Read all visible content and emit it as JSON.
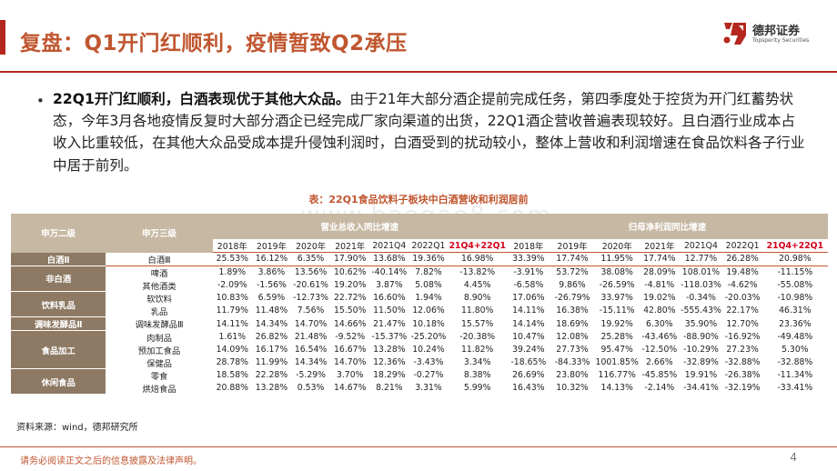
{
  "header": {
    "title": "复盘：Q1开门红顺利，疫情暂致Q2承压",
    "logo_cn": "德邦证券",
    "logo_en": "Topsperity Securities",
    "accent_color": "#B5271E"
  },
  "body": {
    "lead": "22Q1开门红顺利，白酒表现优于其他大众品。",
    "text": "由于21年大部分酒企提前完成任务，第四季度处于控货为开门红蓄势状态，今年3月各地疫情反复时大部分酒企已经完成厂家向渠道的出货，22Q1酒企营收普遍表现较好。且白酒行业成本占收入比重较低，在其他大众品受成本提升侵蚀利润时，白酒受到的扰动较小，整体上营收和利润增速在食品饮料各子行业中居于前列。"
  },
  "table": {
    "title": "表：22Q1食品饮料子板块中白酒营收和利润居前",
    "watermark": "www.baogao8.com",
    "col1_header": "申万二级",
    "col2_header": "申万三级",
    "rev_header": "营业总收入同比增速",
    "profit_header": "归母净利润同比增速",
    "years": [
      "2018年",
      "2019年",
      "2020年",
      "2021年",
      "2021Q4",
      "2022Q1",
      "21Q4+22Q1"
    ],
    "groups": [
      {
        "name": "白酒Ⅱ",
        "rows": [
          {
            "sub": "白酒Ⅲ",
            "rev": [
              "25.53%",
              "16.12%",
              "6.35%",
              "17.90%",
              "13.68%",
              "19.36%",
              "16.98%"
            ],
            "profit": [
              "33.39%",
              "17.74%",
              "11.95%",
              "17.74%",
              "12.77%",
              "26.28%",
              "20.98%"
            ]
          }
        ]
      },
      {
        "name": "非白酒",
        "rows": [
          {
            "sub": "啤酒",
            "rev": [
              "1.89%",
              "3.86%",
              "13.56%",
              "10.62%",
              "-40.14%",
              "7.82%",
              "-13.82%"
            ],
            "profit": [
              "-3.91%",
              "53.72%",
              "38.08%",
              "28.09%",
              "108.01%",
              "19.48%",
              "-11.15%"
            ]
          },
          {
            "sub": "其他酒类",
            "rev": [
              "-2.09%",
              "-1.56%",
              "-20.61%",
              "19.20%",
              "3.87%",
              "5.08%",
              "4.45%"
            ],
            "profit": [
              "-6.58%",
              "9.86%",
              "-26.59%",
              "-4.81%",
              "-118.03%",
              "-4.62%",
              "-55.08%"
            ]
          }
        ]
      },
      {
        "name": "饮料乳品",
        "rows": [
          {
            "sub": "软饮料",
            "rev": [
              "10.83%",
              "6.59%",
              "-12.73%",
              "22.72%",
              "16.60%",
              "1.94%",
              "8.90%"
            ],
            "profit": [
              "17.06%",
              "-26.79%",
              "33.97%",
              "19.02%",
              "-0.34%",
              "-20.03%",
              "-10.98%"
            ]
          },
          {
            "sub": "乳品",
            "rev": [
              "11.79%",
              "11.48%",
              "7.56%",
              "15.50%",
              "11.50%",
              "12.06%",
              "11.80%"
            ],
            "profit": [
              "14.11%",
              "16.38%",
              "-15.11%",
              "42.80%",
              "-555.43%",
              "22.17%",
              "46.31%"
            ]
          }
        ]
      },
      {
        "name": "调味发酵品Ⅱ",
        "rows": [
          {
            "sub": "调味发酵品Ⅲ",
            "rev": [
              "14.11%",
              "14.34%",
              "14.70%",
              "14.66%",
              "21.47%",
              "10.18%",
              "15.57%"
            ],
            "profit": [
              "14.14%",
              "18.69%",
              "19.92%",
              "6.30%",
              "35.90%",
              "12.70%",
              "23.36%"
            ]
          }
        ]
      },
      {
        "name": "食品加工",
        "rows": [
          {
            "sub": "肉制品",
            "rev": [
              "1.61%",
              "26.82%",
              "21.48%",
              "-9.52%",
              "-15.37%",
              "-25.20%",
              "-20.38%"
            ],
            "profit": [
              "10.47%",
              "12.08%",
              "25.28%",
              "-43.46%",
              "-88.90%",
              "-16.92%",
              "-49.48%"
            ]
          },
          {
            "sub": "预加工食品",
            "rev": [
              "14.09%",
              "16.17%",
              "16.54%",
              "16.67%",
              "13.28%",
              "10.24%",
              "11.82%"
            ],
            "profit": [
              "39.24%",
              "27.73%",
              "95.47%",
              "-12.50%",
              "-10.29%",
              "27.23%",
              "5.30%"
            ]
          },
          {
            "sub": "保健品",
            "rev": [
              "28.78%",
              "11.99%",
              "14.34%",
              "14.70%",
              "12.36%",
              "-3.43%",
              "3.34%"
            ],
            "profit": [
              "-18.65%",
              "-84.33%",
              "1001.85%",
              "2.66%",
              "-32.89%",
              "-32.88%",
              "-32.88%"
            ]
          }
        ]
      },
      {
        "name": "休闲食品",
        "rows": [
          {
            "sub": "零食",
            "rev": [
              "18.58%",
              "22.28%",
              "-5.29%",
              "3.70%",
              "18.29%",
              "-0.27%",
              "8.38%"
            ],
            "profit": [
              "26.69%",
              "23.80%",
              "116.77%",
              "-45.85%",
              "19.91%",
              "-26.38%",
              "-11.34%"
            ]
          },
          {
            "sub": "烘焙食品",
            "rev": [
              "20.88%",
              "13.28%",
              "0.53%",
              "14.67%",
              "8.21%",
              "3.31%",
              "5.99%"
            ],
            "profit": [
              "16.43%",
              "10.32%",
              "14.13%",
              "-2.14%",
              "-34.41%",
              "-32.19%",
              "-33.41%"
            ]
          }
        ]
      }
    ]
  },
  "source": "资料来源：wind，德邦研究所",
  "footer": {
    "disclaimer": "请务必阅读正文之后的信息披露及法律声明。",
    "page": "4"
  }
}
